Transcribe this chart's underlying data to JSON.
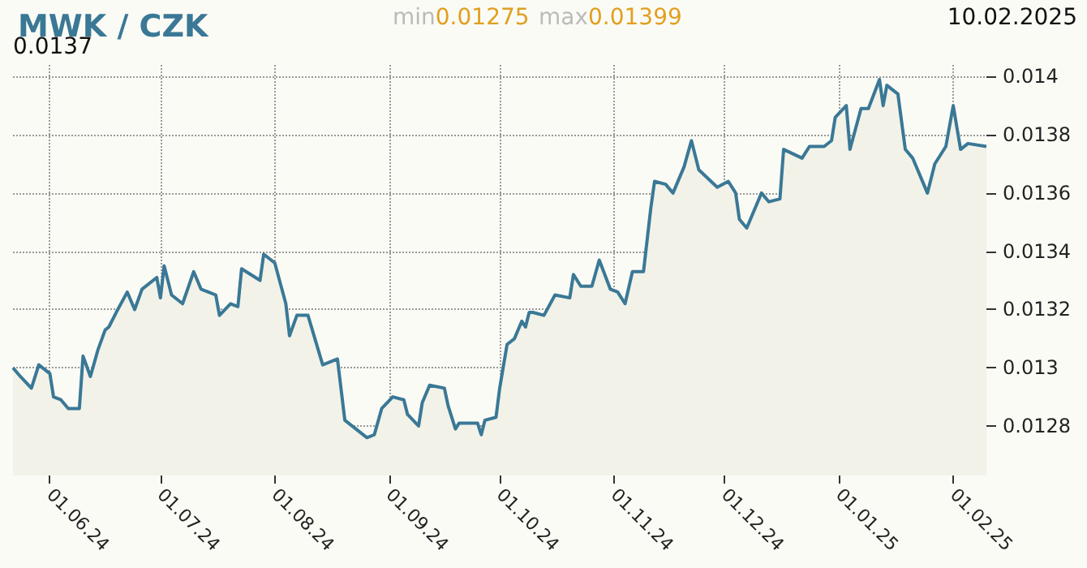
{
  "chart_data": {
    "type": "area",
    "title": "MWK / CZK",
    "annotations": [
      "min0.01275",
      "max0.01399",
      "10.02.2025",
      "0.0137"
    ],
    "x": [
      "2024-05-22",
      "2024-05-24",
      "2024-05-27",
      "2024-05-29",
      "2024-06-01",
      "2024-06-02",
      "2024-06-04",
      "2024-06-06",
      "2024-06-09",
      "2024-06-10",
      "2024-06-12",
      "2024-06-14",
      "2024-06-16",
      "2024-06-17",
      "2024-06-19",
      "2024-06-22",
      "2024-06-24",
      "2024-06-26",
      "2024-06-30",
      "2024-07-01",
      "2024-07-02",
      "2024-07-04",
      "2024-07-07",
      "2024-07-10",
      "2024-07-12",
      "2024-07-16",
      "2024-07-17",
      "2024-07-20",
      "2024-07-22",
      "2024-07-23",
      "2024-07-28",
      "2024-07-29",
      "2024-08-01",
      "2024-08-04",
      "2024-08-05",
      "2024-08-07",
      "2024-08-10",
      "2024-08-14",
      "2024-08-18",
      "2024-08-20",
      "2024-08-26",
      "2024-08-28",
      "2024-08-30",
      "2024-09-02",
      "2024-09-05",
      "2024-09-06",
      "2024-09-09",
      "2024-09-10",
      "2024-09-12",
      "2024-09-16",
      "2024-09-17",
      "2024-09-19",
      "2024-09-20",
      "2024-09-25",
      "2024-09-26",
      "2024-09-27",
      "2024-09-30",
      "2024-10-01",
      "2024-10-03",
      "2024-10-05",
      "2024-10-07",
      "2024-10-08",
      "2024-10-09",
      "2024-10-10",
      "2024-10-13",
      "2024-10-16",
      "2024-10-20",
      "2024-10-21",
      "2024-10-23",
      "2024-10-26",
      "2024-10-28",
      "2024-10-31",
      "2024-11-02",
      "2024-11-04",
      "2024-11-06",
      "2024-11-09",
      "2024-11-11",
      "2024-11-12",
      "2024-11-15",
      "2024-11-17",
      "2024-11-20",
      "2024-11-22",
      "2024-11-24",
      "2024-11-29",
      "2024-12-02",
      "2024-12-04",
      "2024-12-05",
      "2024-12-07",
      "2024-12-11",
      "2024-12-13",
      "2024-12-16",
      "2024-12-17",
      "2024-12-22",
      "2024-12-24",
      "2024-12-28",
      "2024-12-30",
      "2024-12-31",
      "2025-01-03",
      "2025-01-04",
      "2025-01-07",
      "2025-01-09",
      "2025-01-12",
      "2025-01-13",
      "2025-01-14",
      "2025-01-17",
      "2025-01-19",
      "2025-01-21",
      "2025-01-25",
      "2025-01-27",
      "2025-01-30",
      "2025-02-01",
      "2025-02-03",
      "2025-02-05",
      "2025-02-10"
    ],
    "series": [
      {
        "color": "#3a7896",
        "values": [
          0.013,
          0.01297,
          0.01293,
          0.01301,
          0.01298,
          0.0129,
          0.01289,
          0.01286,
          0.01286,
          0.01304,
          0.01297,
          0.01306,
          0.01313,
          0.01314,
          0.01319,
          0.01326,
          0.0132,
          0.01327,
          0.01331,
          0.01324,
          0.01335,
          0.01325,
          0.01322,
          0.01333,
          0.01327,
          0.01325,
          0.01318,
          0.01322,
          0.01321,
          0.01334,
          0.0133,
          0.01339,
          0.01336,
          0.01322,
          0.01311,
          0.01318,
          0.01318,
          0.01301,
          0.01303,
          0.01282,
          0.01276,
          0.01277,
          0.01286,
          0.0129,
          0.01289,
          0.01284,
          0.0128,
          0.01288,
          0.01294,
          0.01293,
          0.01287,
          0.01279,
          0.01281,
          0.01281,
          0.01277,
          0.01282,
          0.01283,
          0.01293,
          0.01308,
          0.0131,
          0.01316,
          0.01314,
          0.01319,
          0.01319,
          0.01318,
          0.01325,
          0.01324,
          0.01332,
          0.01328,
          0.01328,
          0.01337,
          0.01327,
          0.01326,
          0.01322,
          0.01333,
          0.01333,
          0.01355,
          0.01364,
          0.01363,
          0.0136,
          0.01369,
          0.01378,
          0.01368,
          0.01362,
          0.01364,
          0.0136,
          0.01351,
          0.01348,
          0.0136,
          0.01357,
          0.01358,
          0.01375,
          0.01372,
          0.01376,
          0.01376,
          0.01378,
          0.01386,
          0.0139,
          0.01375,
          0.01389,
          0.01389,
          0.01399,
          0.0139,
          0.01397,
          0.01394,
          0.01375,
          0.01372,
          0.0136,
          0.0137,
          0.01376,
          0.0139,
          0.01375,
          0.01377,
          0.01376
        ]
      }
    ],
    "xlim": [
      "2024-05-22",
      "2025-02-10"
    ],
    "xticks": [
      {
        "value": "2024-06-01",
        "label": "01.06.24"
      },
      {
        "value": "2024-07-01",
        "label": "01.07.24"
      },
      {
        "value": "2024-08-01",
        "label": "01.08.24"
      },
      {
        "value": "2024-09-01",
        "label": "01.09.24"
      },
      {
        "value": "2024-10-01",
        "label": "01.10.24"
      },
      {
        "value": "2024-11-01",
        "label": "01.11.24"
      },
      {
        "value": "2024-12-01",
        "label": "01.12.24"
      },
      {
        "value": "2025-01-01",
        "label": "01.01.25"
      },
      {
        "value": "2025-02-01",
        "label": "01.02.25"
      }
    ],
    "ylim": [
      0.01263,
      0.01404
    ],
    "yticks": [
      0.0128,
      0.013,
      0.0132,
      0.0134,
      0.0136,
      0.0138,
      0.014
    ],
    "grid": true
  }
}
